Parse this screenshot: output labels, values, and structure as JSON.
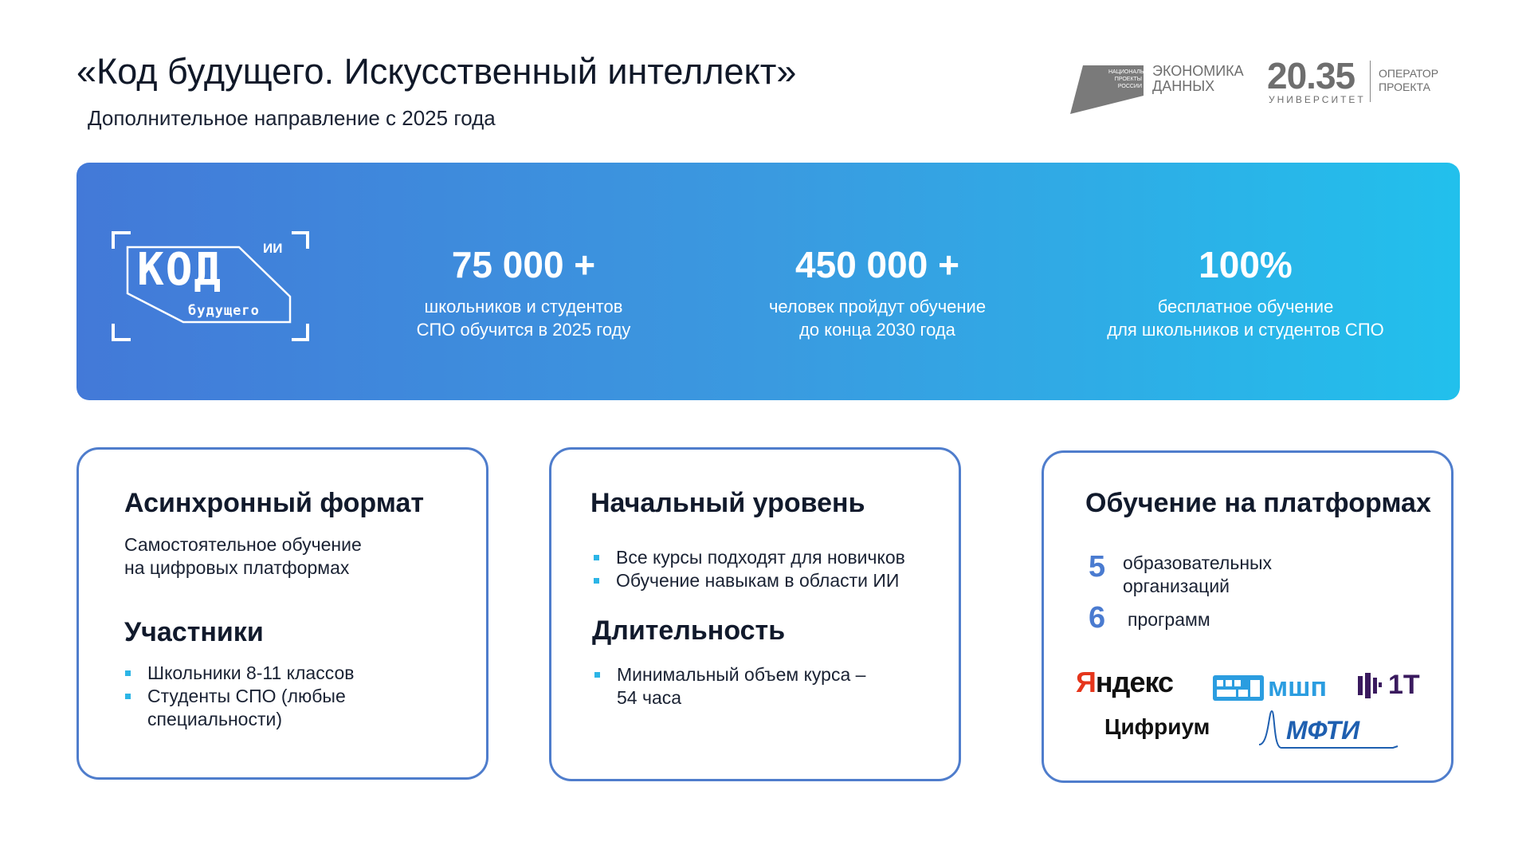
{
  "header": {
    "title": "«Код будущего. Искусственный интеллект»",
    "subtitle": "Дополнительное направление с 2025 года"
  },
  "logos": {
    "national_projects": "НАЦИОНАЛЬНЫЕ ПРОЕКТЫ РОССИИ",
    "economy_line1": "ЭКОНОМИКА",
    "economy_line2": "ДАННЫХ",
    "university_number": "20.35",
    "university_label": "УНИВЕРСИТЕТ",
    "operator_line1": "ОПЕРАТОР",
    "operator_line2": "ПРОЕКТА"
  },
  "banner": {
    "logo": {
      "main": "КОД",
      "sup": "ИИ",
      "sub": "будущего"
    },
    "stats": [
      {
        "value": "75 000 +",
        "line1": "школьников и студентов",
        "line2": "СПО обучится в 2025 году"
      },
      {
        "value": "450 000 +",
        "line1": "человек пройдут обучение",
        "line2": "до конца 2030 года"
      },
      {
        "value": "100%",
        "line1": "бесплатное обучение",
        "line2": "для школьников и студентов СПО"
      }
    ],
    "gradient": [
      "#4379d8",
      "#22c0ec"
    ]
  },
  "cards": [
    {
      "heading": "Асинхронный формат",
      "text1": "Самостоятельное обучение",
      "text2": "на цифровых платформах",
      "heading2": "Участники",
      "bullets": [
        "Школьники 8-11 классов",
        "Студенты СПО (любые",
        "специальности)"
      ]
    },
    {
      "heading": "Начальный уровень",
      "bullets": [
        "Все курсы подходят для новичков",
        "Обучение навыкам в области ИИ"
      ],
      "heading2": "Длительность",
      "bullets2": [
        "Минимальный объем курса –",
        "54 часа"
      ]
    },
    {
      "heading": "Обучение на платформах",
      "n1": "5",
      "n1_line1": "образовательных",
      "n1_line2": "организаций",
      "n2": "6",
      "n2_text": "программ",
      "partners": {
        "yandex": "Яндекс",
        "mshp": "мшп",
        "one_t": "1T",
        "cifrium": "Цифриум",
        "mfti": "МФТИ"
      }
    }
  ],
  "colors": {
    "accent": "#4a7bd0",
    "bullet": "#2cb5e6",
    "card_border": "#4f7dcc"
  }
}
